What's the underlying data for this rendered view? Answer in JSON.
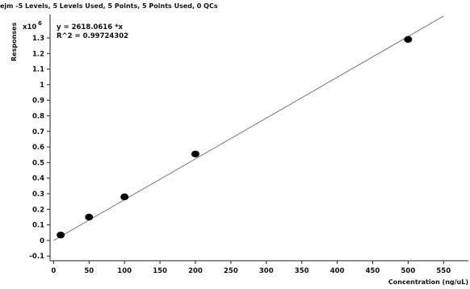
{
  "chart_data": {
    "type": "scatter",
    "header": "ejm -5 Levels, 5 Levels Used, 5 Points, 5 Points Used, 0 QCs",
    "equation": "y = 2618.0616 *x",
    "r_squared": "R^2 = 0.99724302",
    "multiplier": "x10",
    "multiplier_exponent": "6",
    "ylabel": "Responses",
    "xlabel": "Concentration (ng/uL)",
    "xlim": [
      -5,
      585
    ],
    "ylim": [
      -0.13,
      1.45
    ],
    "x_ticks": [
      "0",
      "50",
      "100",
      "150",
      "200",
      "250",
      "300",
      "350",
      "400",
      "450",
      "500",
      "550"
    ],
    "x_tick_values": [
      0,
      50,
      100,
      150,
      200,
      250,
      300,
      350,
      400,
      450,
      500,
      550
    ],
    "y_ticks": [
      "-0.1",
      "0",
      "0.1",
      "0.2",
      "0.3",
      "0.4",
      "0.5",
      "0.6",
      "0.7",
      "0.8",
      "0.9",
      "1",
      "1.1",
      "1.2",
      "1.3"
    ],
    "y_tick_values": [
      -0.1,
      0,
      0.1,
      0.2,
      0.3,
      0.4,
      0.5,
      0.6,
      0.7,
      0.8,
      0.9,
      1.0,
      1.1,
      1.2,
      1.3
    ],
    "points": [
      {
        "x": 10,
        "y": 0.035
      },
      {
        "x": 50,
        "y": 0.15
      },
      {
        "x": 100,
        "y": 0.28
      },
      {
        "x": 200,
        "y": 0.555
      },
      {
        "x": 500,
        "y": 1.29
      }
    ],
    "fit_line": {
      "x": [
        0,
        550
      ],
      "slope_per_unit": 0.002618,
      "color": "#777777"
    },
    "point_color": "#000000",
    "grid": false
  }
}
